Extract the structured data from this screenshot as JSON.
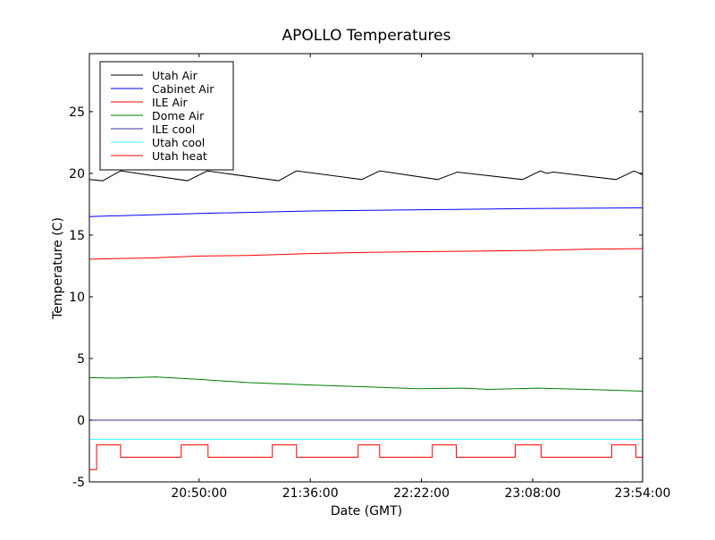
{
  "chart_data": {
    "type": "line",
    "title": "APOLLO Temperatures",
    "xlabel": "Date (GMT)",
    "ylabel": "Temperature (C)",
    "x_unit": "minutes since 00:00 GMT",
    "xlim": [
      1204.6,
      1433.5
    ],
    "ylim": [
      -5,
      29.7
    ],
    "xticks": [
      1250,
      1296,
      1342,
      1388,
      1434
    ],
    "xtick_labels": [
      "20:50:00",
      "21:36:00",
      "22:22:00",
      "23:08:00",
      "23:54:00"
    ],
    "yticks": [
      -5,
      0,
      5,
      10,
      15,
      20,
      25
    ],
    "ytick_labels": [
      "-5",
      "0",
      "5",
      "10",
      "15",
      "20",
      "25"
    ],
    "grid": false,
    "legend_position": "top-left",
    "series": [
      {
        "name": "Utah Air",
        "color": "#000000",
        "step": false,
        "x": [
          1204.6,
          1210.1,
          1217.5,
          1245.2,
          1253.4,
          1282.9,
          1290.3,
          1317.3,
          1324.7,
          1348.7,
          1356.8,
          1383.8,
          1391.2,
          1393.7,
          1396.7,
          1422.5,
          1430.0,
          1433.3
        ],
        "y": [
          19.5,
          19.4,
          20.2,
          19.4,
          20.2,
          19.4,
          20.2,
          19.5,
          20.2,
          19.5,
          20.1,
          19.5,
          20.2,
          20.0,
          20.1,
          19.5,
          20.2,
          19.9
        ]
      },
      {
        "name": "Cabinet Air",
        "color": "#0000ff",
        "step": false,
        "x": [
          1204.6,
          1250,
          1296,
          1342,
          1388,
          1433.3
        ],
        "y": [
          16.5,
          16.75,
          16.95,
          17.05,
          17.15,
          17.2
        ]
      },
      {
        "name": "ILE Air",
        "color": "#ff0000",
        "step": false,
        "x": [
          1204.6,
          1230,
          1250,
          1270,
          1296,
          1320,
          1342,
          1365,
          1388,
          1410,
          1433.3
        ],
        "y": [
          13.05,
          13.15,
          13.3,
          13.35,
          13.5,
          13.6,
          13.65,
          13.7,
          13.75,
          13.85,
          13.9
        ]
      },
      {
        "name": "Dome Air",
        "color": "#008000",
        "step": false,
        "x": [
          1204.6,
          1215,
          1232,
          1250,
          1270,
          1296,
          1320,
          1340,
          1360,
          1370,
          1390,
          1410,
          1433.3
        ],
        "y": [
          3.45,
          3.4,
          3.5,
          3.3,
          3.05,
          2.85,
          2.7,
          2.55,
          2.6,
          2.5,
          2.6,
          2.5,
          2.35
        ]
      },
      {
        "name": "ILE cool",
        "color": "#333399",
        "step": false,
        "x": [
          1204.6,
          1433.3
        ],
        "y": [
          0,
          0
        ]
      },
      {
        "name": "Utah cool",
        "color": "#33ffff",
        "step": false,
        "x": [
          1204.6,
          1433.3
        ],
        "y": [
          -1.55,
          -1.55
        ]
      },
      {
        "name": "Utah heat",
        "color": "#ff0000",
        "step": true,
        "x": [
          1204.6,
          1207.6,
          1217.5,
          1242.6,
          1253.7,
          1280.3,
          1290.3,
          1315.8,
          1324.7,
          1346.5,
          1356.4,
          1380.8,
          1391.5,
          1420.7,
          1430.7,
          1433.3
        ],
        "y": [
          -4,
          -2,
          -3,
          -2,
          -3,
          -2,
          -3,
          -2,
          -3,
          -2,
          -3,
          -2,
          -3,
          -2,
          -3,
          -3
        ]
      }
    ]
  }
}
